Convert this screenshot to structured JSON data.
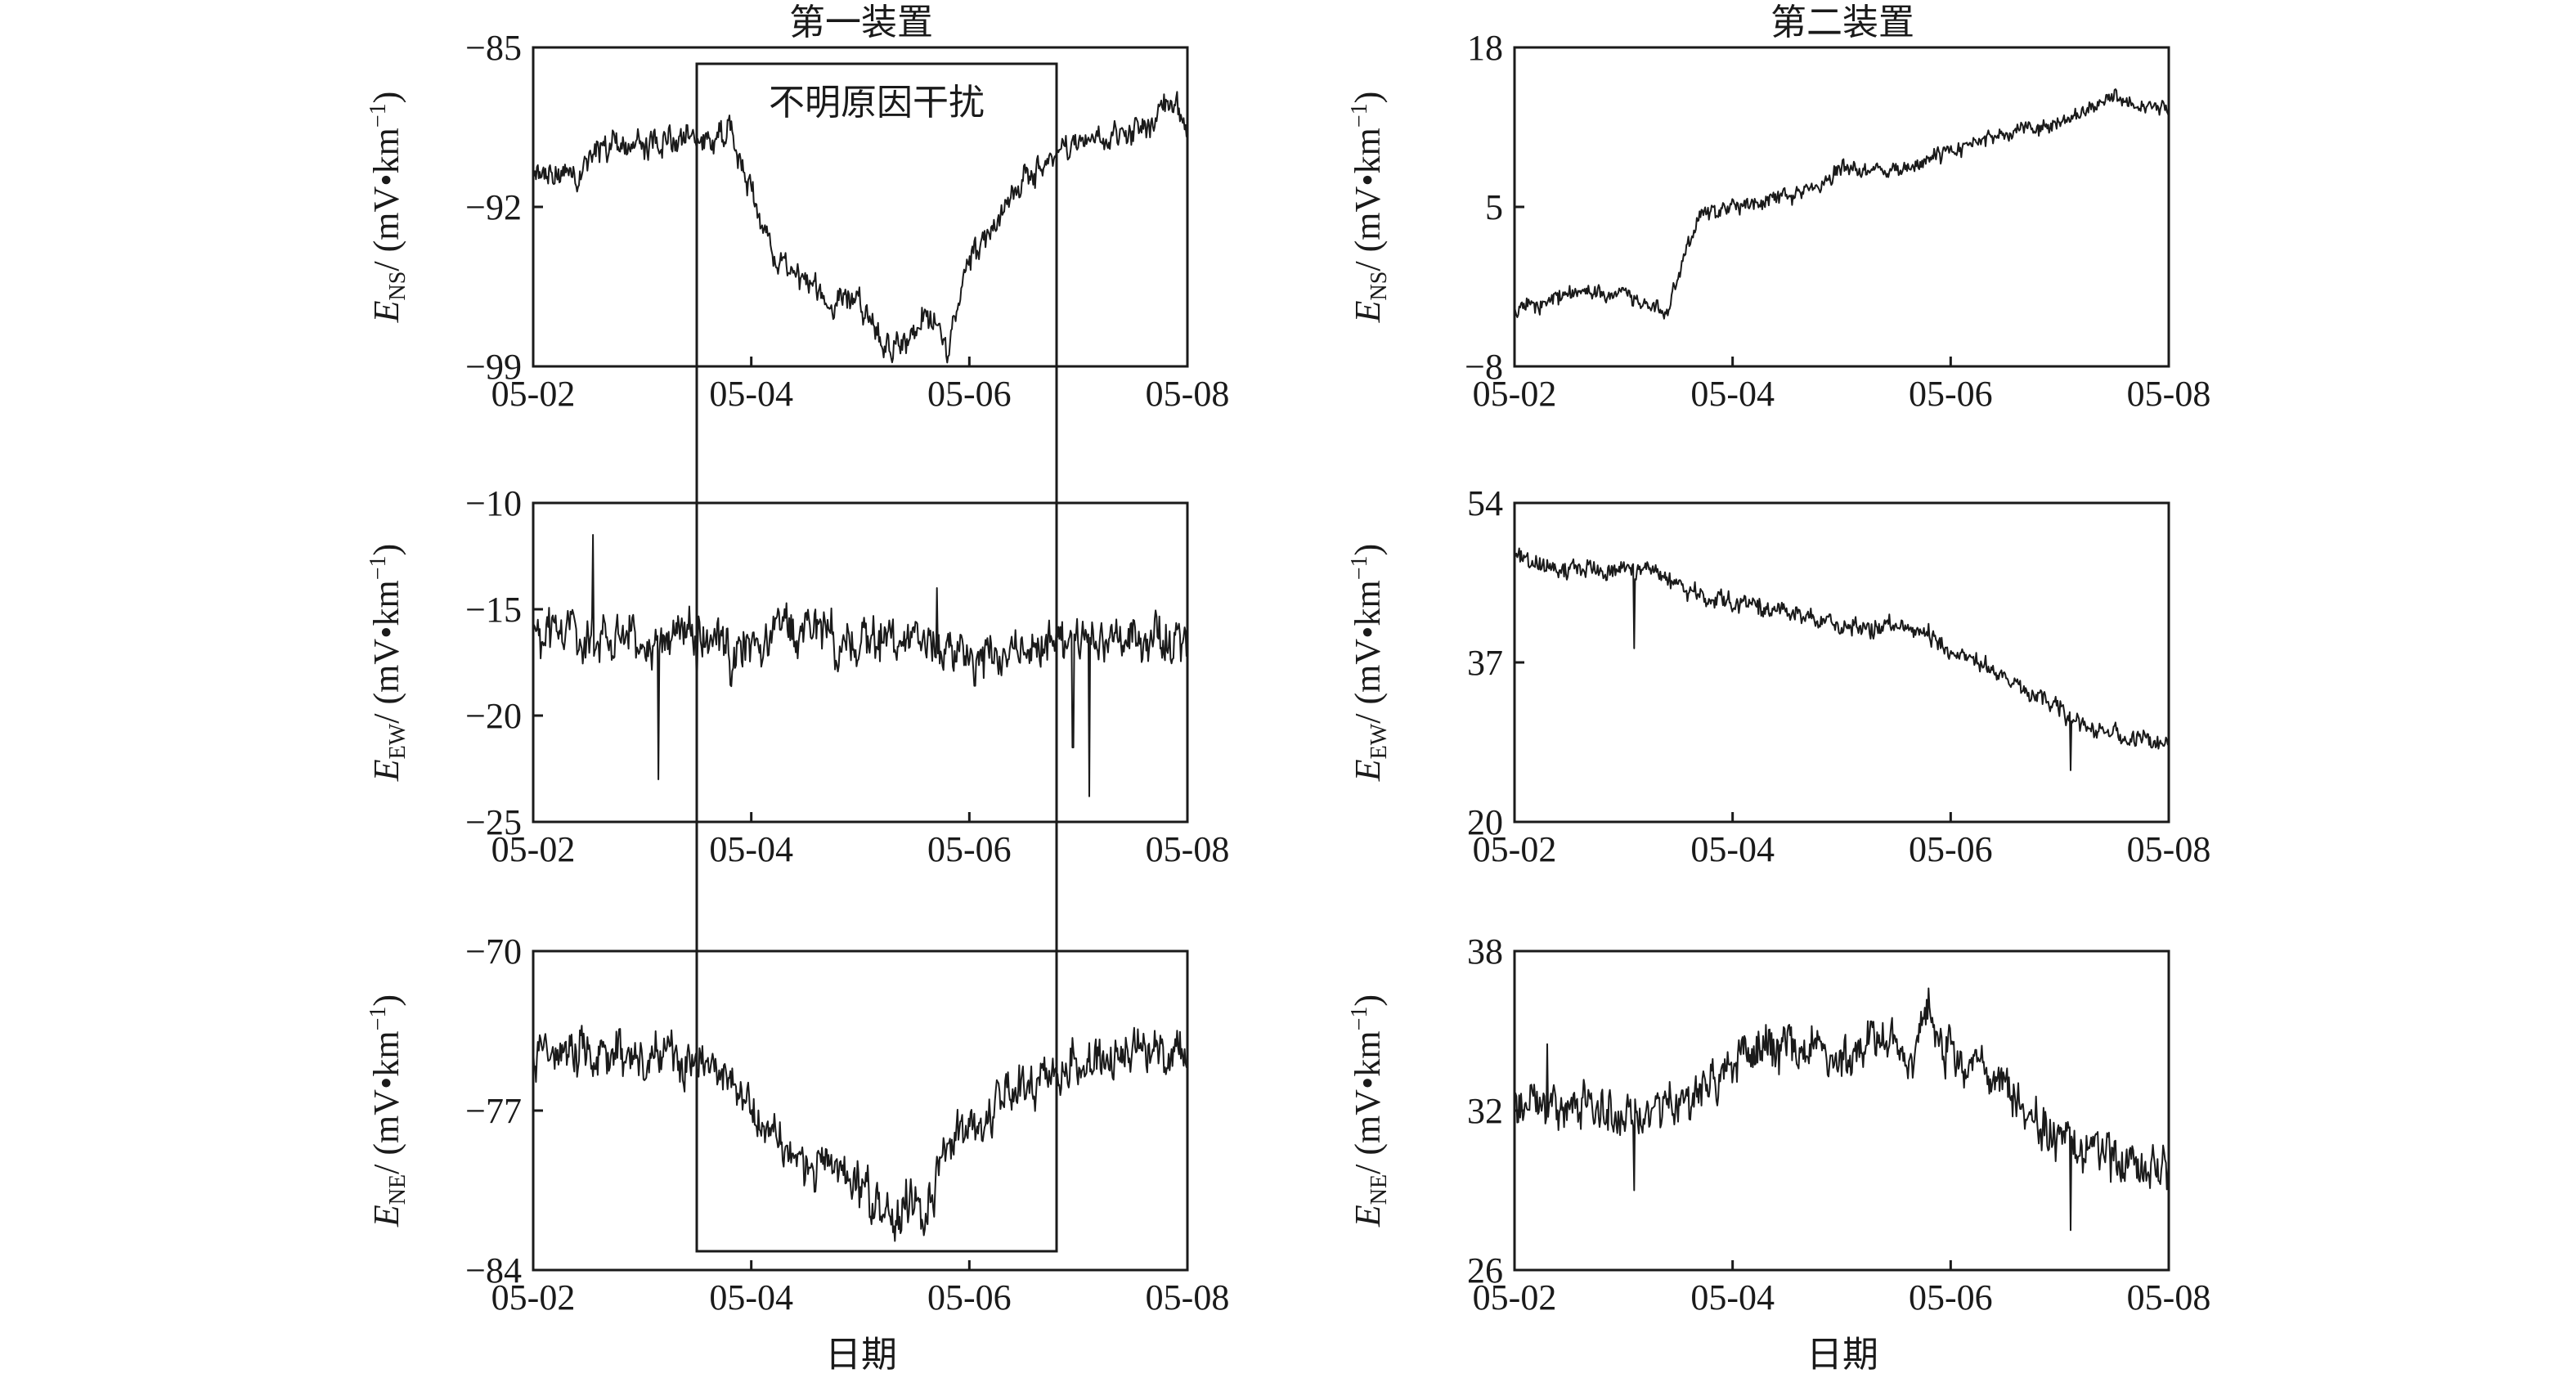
{
  "figure": {
    "column_titles": [
      "第一装置",
      "第二装置"
    ],
    "x_label": "日期",
    "interference_label": "不明原因干扰",
    "interference_range": [
      "05-03.5",
      "05-06.8"
    ]
  },
  "chart_data": [
    {
      "type": "line",
      "id": "dev1-ns",
      "column": 0,
      "row": 0,
      "ylabel_main": "E",
      "ylabel_sub": "NS",
      "ylabel_rest": "/ (mV•km",
      "ylabel_sup": "−1",
      "ylabel_close": ")",
      "xlim": [
        0,
        6
      ],
      "xticks": [
        0,
        2,
        4,
        6
      ],
      "xtick_labels": [
        "05-02",
        "05-04",
        "05-06",
        "05-08"
      ],
      "ylim": [
        -99,
        -85
      ],
      "yticks": [
        -85,
        -92,
        -99
      ],
      "ytick_labels": [
        "−85",
        "−92",
        "−99"
      ],
      "noise": 0.75,
      "x": [
        0,
        0.3,
        0.6,
        1.0,
        1.3,
        1.5,
        1.7,
        1.8,
        2.0,
        2.2,
        2.5,
        2.8,
        3.0,
        3.2,
        3.4,
        3.6,
        3.8,
        4.0,
        4.3,
        4.6,
        4.9,
        5.2,
        5.5,
        5.8,
        6.0
      ],
      "y": [
        -90.5,
        -90.8,
        -89.5,
        -89.3,
        -89.0,
        -89.2,
        -88.8,
        -88.5,
        -91.5,
        -94.0,
        -95.2,
        -96.3,
        -96.0,
        -97.8,
        -98.2,
        -96.5,
        -97.8,
        -94.5,
        -92.0,
        -90.3,
        -89.5,
        -89.0,
        -88.8,
        -87.6,
        -88.2
      ]
    },
    {
      "type": "line",
      "id": "dev1-ew",
      "column": 0,
      "row": 1,
      "ylabel_main": "E",
      "ylabel_sub": "EW",
      "ylabel_rest": "/ (mV•km",
      "ylabel_sup": "−1",
      "ylabel_close": ")",
      "xlim": [
        0,
        6
      ],
      "xticks": [
        0,
        2,
        4,
        6
      ],
      "xtick_labels": [
        "05-02",
        "05-04",
        "05-06",
        "05-08"
      ],
      "ylim": [
        -25,
        -10
      ],
      "yticks": [
        -10,
        -15,
        -20,
        -25
      ],
      "ytick_labels": [
        "−10",
        "−15",
        "−20",
        "−25"
      ],
      "noise": 1.3,
      "spikes": [
        [
          0.55,
          -11.5
        ],
        [
          1.15,
          -23.0
        ],
        [
          1.5,
          -19.0
        ],
        [
          3.7,
          -14.0
        ],
        [
          4.05,
          -18.6
        ],
        [
          4.95,
          -21.5
        ],
        [
          5.1,
          -23.8
        ]
      ],
      "x": [
        0,
        0.5,
        1.0,
        1.5,
        1.8,
        2.0,
        2.5,
        3.0,
        3.5,
        4.0,
        4.5,
        5.0,
        5.5,
        6.0
      ],
      "y": [
        -16.0,
        -16.2,
        -16.5,
        -16.3,
        -17.0,
        -16.3,
        -16.0,
        -16.5,
        -16.2,
        -17.2,
        -16.8,
        -16.5,
        -16.8,
        -16.3
      ]
    },
    {
      "type": "line",
      "id": "dev1-ne",
      "column": 0,
      "row": 2,
      "ylabel_main": "E",
      "ylabel_sub": "NE",
      "ylabel_rest": "/ (mV•km",
      "ylabel_sup": "−1",
      "ylabel_close": ")",
      "xlim": [
        0,
        6
      ],
      "xticks": [
        0,
        2,
        4,
        6
      ],
      "xtick_labels": [
        "05-02",
        "05-04",
        "05-06",
        "05-08"
      ],
      "ylim": [
        -84,
        -70
      ],
      "yticks": [
        -70,
        -77,
        -84
      ],
      "ytick_labels": [
        "−70",
        "−77",
        "−84"
      ],
      "noise": 1.2,
      "x": [
        0,
        0.5,
        1.0,
        1.5,
        1.6,
        1.8,
        2.0,
        2.3,
        2.6,
        2.8,
        3.0,
        3.2,
        3.4,
        3.6,
        3.8,
        4.0,
        4.3,
        4.6,
        5.0,
        5.5,
        6.0
      ],
      "y": [
        -74.5,
        -74.3,
        -74.6,
        -74.8,
        -75.0,
        -75.5,
        -77.0,
        -78.5,
        -79.8,
        -79.2,
        -80.3,
        -81.5,
        -81.2,
        -81.3,
        -78.5,
        -77.5,
        -76.5,
        -76.0,
        -75.0,
        -74.5,
        -74.5
      ]
    },
    {
      "type": "line",
      "id": "dev2-ns",
      "column": 1,
      "row": 0,
      "ylabel_main": "E",
      "ylabel_sub": "NS",
      "ylabel_rest": "/ (mV•km",
      "ylabel_sup": "−1",
      "ylabel_close": ")",
      "xlim": [
        0,
        6
      ],
      "xticks": [
        0,
        2,
        4,
        6
      ],
      "xtick_labels": [
        "05-02",
        "05-04",
        "05-06",
        "05-08"
      ],
      "ylim": [
        -8,
        18
      ],
      "yticks": [
        18,
        5,
        -8
      ],
      "ytick_labels": [
        "18",
        "5",
        "−8"
      ],
      "noise": 0.8,
      "x": [
        0,
        0.5,
        1.0,
        1.2,
        1.4,
        1.55,
        1.7,
        2.0,
        2.5,
        2.8,
        3.0,
        3.5,
        4.0,
        4.5,
        5.0,
        5.5,
        6.0
      ],
      "y": [
        -3.5,
        -2.0,
        -2.0,
        -3.0,
        -3.8,
        1.0,
        4.0,
        5.0,
        6.0,
        7.0,
        8.2,
        8.0,
        9.5,
        11.0,
        12.0,
        14.0,
        13.0
      ]
    },
    {
      "type": "line",
      "id": "dev2-ew",
      "column": 1,
      "row": 1,
      "ylabel_main": "E",
      "ylabel_sub": "EW",
      "ylabel_rest": "/ (mV•km",
      "ylabel_sup": "−1",
      "ylabel_close": ")",
      "xlim": [
        0,
        6
      ],
      "xticks": [
        0,
        2,
        4,
        6
      ],
      "xtick_labels": [
        "05-02",
        "05-04",
        "05-06",
        "05-08"
      ],
      "ylim": [
        20,
        54
      ],
      "yticks": [
        54,
        37,
        20
      ],
      "ytick_labels": [
        "54",
        "37",
        "20"
      ],
      "noise": 1.2,
      "spikes": [
        [
          1.1,
          38.5
        ],
        [
          5.1,
          25.5
        ]
      ],
      "x": [
        0,
        0.5,
        1.0,
        1.3,
        1.5,
        2.0,
        2.5,
        3.0,
        3.5,
        3.8,
        4.0,
        4.5,
        5.0,
        5.3,
        5.6,
        6.0
      ],
      "y": [
        48.0,
        47.0,
        46.5,
        47.0,
        45.0,
        43.5,
        42.5,
        41.0,
        40.5,
        40.0,
        38.5,
        35.5,
        32.0,
        30.0,
        29.0,
        28.5
      ]
    },
    {
      "type": "line",
      "id": "dev2-ne",
      "column": 1,
      "row": 2,
      "ylabel_main": "E",
      "ylabel_sub": "NE",
      "ylabel_rest": "/ (mV•km",
      "ylabel_sup": "−1",
      "ylabel_close": ")",
      "xlim": [
        0,
        6
      ],
      "xticks": [
        0,
        2,
        4,
        6
      ],
      "xtick_labels": [
        "05-02",
        "05-04",
        "05-06",
        "05-08"
      ],
      "ylim": [
        26,
        38
      ],
      "yticks": [
        38,
        32,
        26
      ],
      "ytick_labels": [
        "38",
        "32",
        "26"
      ],
      "noise": 1.0,
      "spikes": [
        [
          0.3,
          34.5
        ],
        [
          1.1,
          29.0
        ],
        [
          3.8,
          36.6
        ],
        [
          5.1,
          27.5
        ]
      ],
      "x": [
        0,
        0.5,
        1.0,
        1.5,
        2.0,
        2.5,
        3.0,
        3.4,
        3.6,
        3.8,
        4.0,
        4.5,
        4.7,
        5.0,
        5.5,
        6.0
      ],
      "y": [
        32.0,
        32.0,
        32.0,
        32.0,
        34.0,
        34.5,
        34.0,
        35.0,
        33.8,
        35.5,
        34.0,
        33.0,
        31.8,
        31.0,
        30.0,
        30.0
      ]
    }
  ]
}
